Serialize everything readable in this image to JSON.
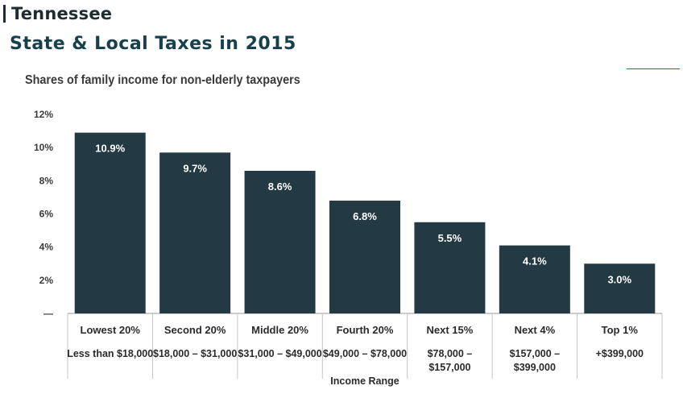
{
  "header": {
    "state": "Tennessee",
    "title": "State & Local Taxes in 2015"
  },
  "colors": {
    "bar": "#233a44",
    "title": "#16404e",
    "accent_rule": "#b5333b",
    "axis": "#9a9a9a"
  },
  "chart_data": {
    "type": "bar",
    "title": "Shares of family income for non-elderly taxpayers",
    "xlabel": "Income Range",
    "ylabel": "",
    "ylim": [
      0,
      12
    ],
    "yticks": [
      {
        "value": 12,
        "label": "12%"
      },
      {
        "value": 10,
        "label": "10%"
      },
      {
        "value": 8,
        "label": "8%"
      },
      {
        "value": 6,
        "label": "6%"
      },
      {
        "value": 4,
        "label": "4%"
      },
      {
        "value": 2,
        "label": "2%"
      },
      {
        "value": 0,
        "label": "—"
      }
    ],
    "categories": [
      "Lowest 20%",
      "Second 20%",
      "Middle 20%",
      "Fourth 20%",
      "Next 15%",
      "Next 4%",
      "Top 1%"
    ],
    "ranges": [
      [
        "Less than $18,000"
      ],
      [
        "$18,000 – $31,000"
      ],
      [
        "$31,000 – $49,000"
      ],
      [
        "$49,000 – $78,000"
      ],
      [
        "$78,000 –",
        "$157,000"
      ],
      [
        "$157,000 –",
        "$399,000"
      ],
      [
        "+$399,000"
      ]
    ],
    "values": [
      10.9,
      9.7,
      8.6,
      6.8,
      5.5,
      4.1,
      3.0
    ],
    "value_labels": [
      "10.9%",
      "9.7%",
      "8.6%",
      "6.8%",
      "5.5%",
      "4.1%",
      "3.0%"
    ],
    "grid": false,
    "legend": "none"
  }
}
